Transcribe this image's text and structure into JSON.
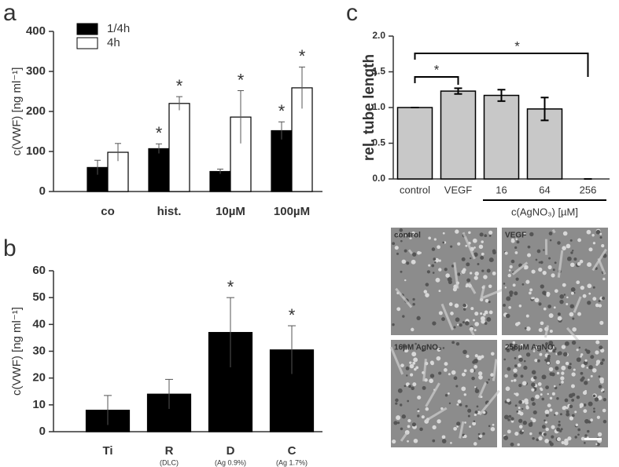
{
  "chart_data": [
    {
      "panel": "a",
      "type": "bar",
      "categories": [
        "co",
        "hist.",
        "10µM",
        "100µM"
      ],
      "series": [
        {
          "name": "1/4h",
          "color": "#000000",
          "values": [
            60,
            107,
            50,
            152
          ],
          "errors": [
            18,
            12,
            6,
            22
          ],
          "significance": [
            null,
            "*",
            null,
            "*"
          ]
        },
        {
          "name": "4h",
          "color": "#ffffff",
          "values": [
            98,
            220,
            186,
            259
          ],
          "errors": [
            22,
            17,
            66,
            52
          ],
          "significance": [
            null,
            "*",
            "*",
            "*"
          ]
        }
      ],
      "y_label": "c(VWF) [ng ml⁻¹]",
      "ylim": [
        0,
        400
      ],
      "yticks": [
        0,
        100,
        200,
        300,
        400
      ]
    },
    {
      "panel": "b",
      "type": "bar",
      "categories": [
        "Ti",
        "R",
        "D",
        "C"
      ],
      "sublabels": [
        null,
        "(DLC)",
        "(Ag 0.9%)",
        "(Ag 1.7%)"
      ],
      "series": [
        {
          "color": "#000000",
          "values": [
            8,
            14,
            37,
            30.5
          ],
          "errors": [
            5.5,
            5.5,
            13,
            9
          ],
          "significance": [
            null,
            null,
            "*",
            "*"
          ]
        }
      ],
      "y_label": "c(VWF) [ng ml⁻¹]",
      "ylim": [
        0,
        60
      ],
      "yticks": [
        0,
        10,
        20,
        30,
        40,
        50,
        60
      ]
    },
    {
      "panel": "c",
      "type": "bar",
      "categories": [
        "control",
        "VEGF",
        "16",
        "64",
        "256"
      ],
      "series": [
        {
          "color": "#c8c8c8",
          "values": [
            1.0,
            1.23,
            1.17,
            0.98,
            0
          ],
          "errors": [
            0,
            0.04,
            0.08,
            0.16,
            0
          ]
        }
      ],
      "group": {
        "label": "c(AgNO₃) [µM]",
        "from": 2,
        "to": 4
      },
      "brackets": [
        {
          "from": 0,
          "to": 1,
          "label": "*"
        },
        {
          "from": 0,
          "to": 4,
          "label": "*"
        }
      ],
      "y_label": "rel. tube length",
      "ylim": [
        0,
        2.0
      ],
      "yticks": [
        {
          "value": 0,
          "label": "0.0"
        },
        {
          "value": 0.5,
          "label": "0.5"
        },
        {
          "value": 1.0,
          "label": "1.0"
        },
        {
          "value": 1.5,
          "label": "1.5"
        },
        {
          "value": 2.0,
          "label": "2.0"
        }
      ]
    }
  ],
  "micrographs": [
    {
      "label": "control"
    },
    {
      "label": "VEGF"
    },
    {
      "label": "16µM AgNO₃"
    },
    {
      "label": "256µM AgNO₃"
    }
  ]
}
